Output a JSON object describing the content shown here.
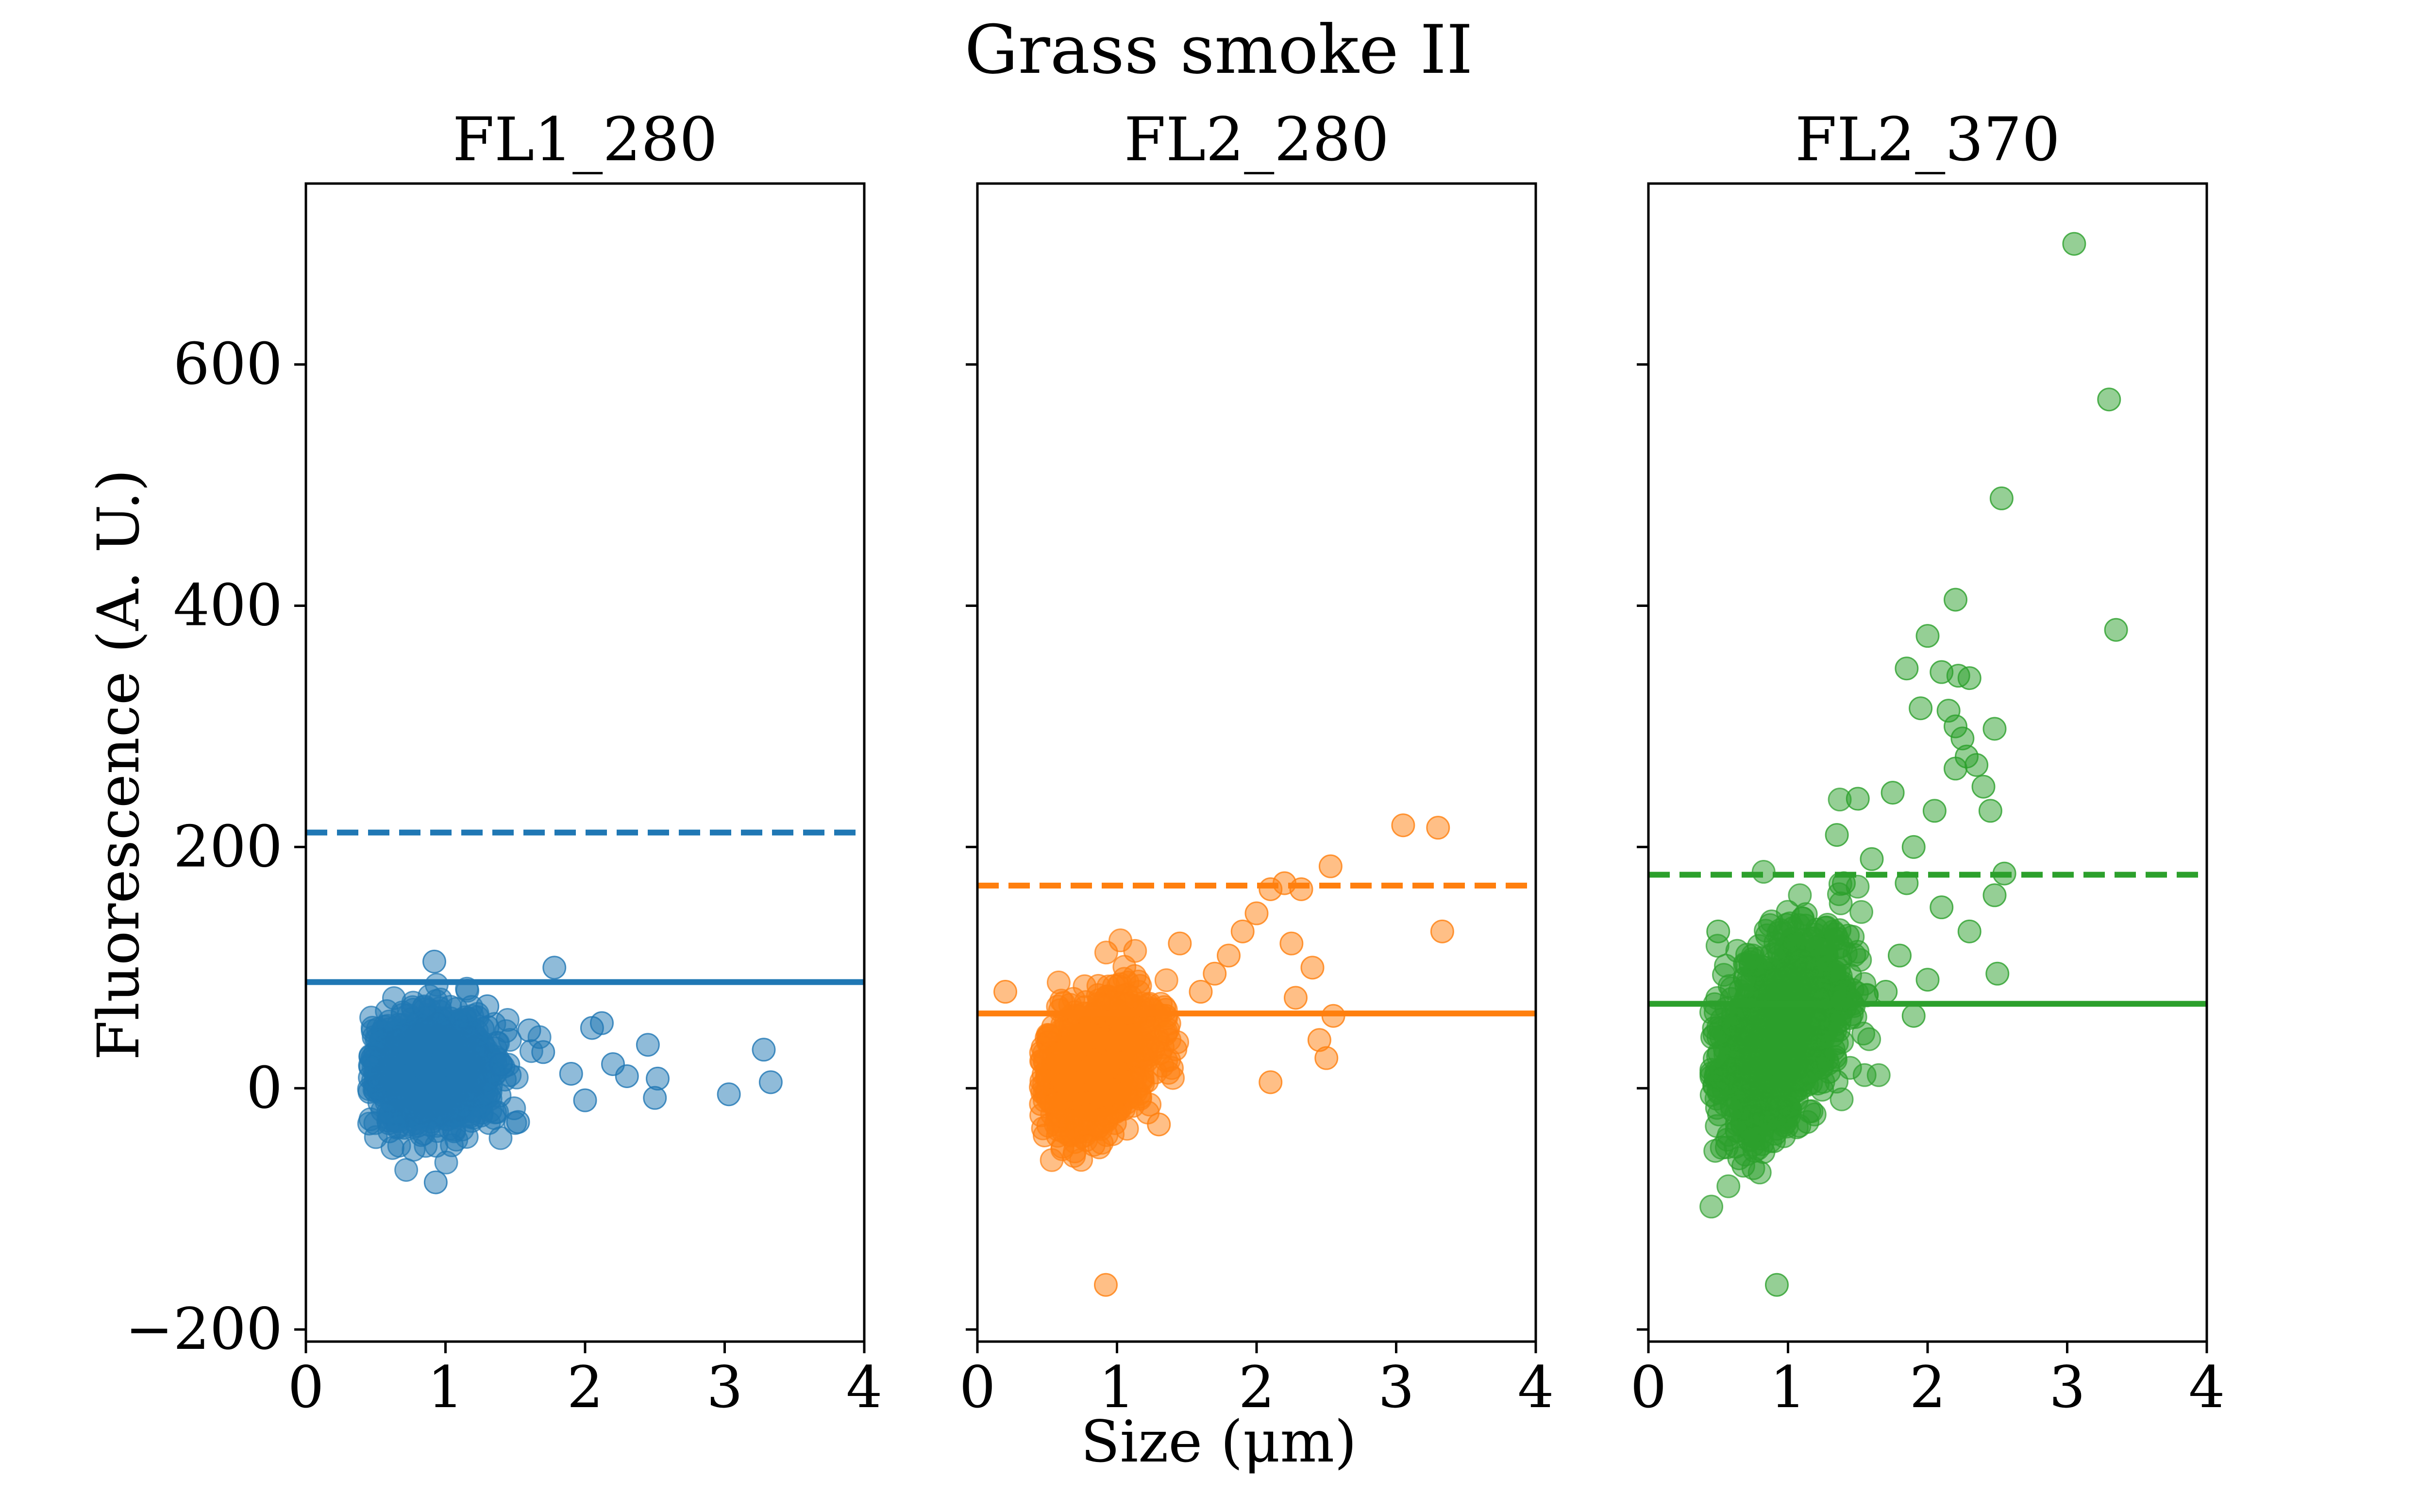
{
  "chart_data": {
    "type": "scatter",
    "title": "Grass smoke II",
    "xlabel": "Size (μm)",
    "ylabel": "Fluorescence (A. U.)",
    "xlim": [
      0,
      4
    ],
    "ylim": [
      -210,
      750
    ],
    "xticks": [
      "0",
      "1",
      "2",
      "3",
      "4"
    ],
    "yticks": [
      "−200",
      "0",
      "200",
      "400",
      "600"
    ],
    "ytick_values": [
      -200,
      0,
      200,
      400,
      600
    ],
    "sharey": true,
    "grid": false,
    "panels": [
      {
        "title": "FL1_280",
        "color": "#1f77b4",
        "threshold_solid": 88,
        "threshold_dashed": 212,
        "cluster": {
          "x_center": 0.9,
          "x_spread": 0.22,
          "y_center": 15,
          "y_spread": 22,
          "count": 1200
        },
        "points": [
          {
            "x": 0.93,
            "y": -78
          },
          {
            "x": 0.92,
            "y": 105
          },
          {
            "x": 1.78,
            "y": 100
          },
          {
            "x": 3.03,
            "y": -5
          },
          {
            "x": 3.28,
            "y": 32
          },
          {
            "x": 3.33,
            "y": 5
          },
          {
            "x": 2.45,
            "y": 36
          },
          {
            "x": 2.05,
            "y": 50
          },
          {
            "x": 2.12,
            "y": 54
          },
          {
            "x": 2.52,
            "y": 8
          },
          {
            "x": 2.5,
            "y": -8
          },
          {
            "x": 1.6,
            "y": 48
          },
          {
            "x": 1.3,
            "y": 68
          },
          {
            "x": 1.52,
            "y": -28
          },
          {
            "x": 2.2,
            "y": 20
          },
          {
            "x": 2.3,
            "y": 10
          },
          {
            "x": 1.9,
            "y": 12
          },
          {
            "x": 2.0,
            "y": -10
          },
          {
            "x": 1.7,
            "y": 30
          },
          {
            "x": 1.4,
            "y": 20
          }
        ]
      },
      {
        "title": "FL2_280",
        "color": "#ff7f0e",
        "threshold_solid": 62,
        "threshold_dashed": 168,
        "cluster": {
          "x_center": 0.85,
          "x_spread": 0.2,
          "y_center": 20,
          "y_spread": 25,
          "count": 1200
        },
        "points": [
          {
            "x": 0.92,
            "y": -163
          },
          {
            "x": 3.05,
            "y": 218
          },
          {
            "x": 3.3,
            "y": 216
          },
          {
            "x": 3.33,
            "y": 130
          },
          {
            "x": 2.53,
            "y": 184
          },
          {
            "x": 2.2,
            "y": 170
          },
          {
            "x": 2.32,
            "y": 165
          },
          {
            "x": 2.1,
            "y": 165
          },
          {
            "x": 2.0,
            "y": 145
          },
          {
            "x": 1.9,
            "y": 130
          },
          {
            "x": 2.4,
            "y": 100
          },
          {
            "x": 2.5,
            "y": 25
          },
          {
            "x": 2.45,
            "y": 40
          },
          {
            "x": 2.55,
            "y": 60
          },
          {
            "x": 2.1,
            "y": 5
          },
          {
            "x": 1.35,
            "y": 60
          },
          {
            "x": 1.6,
            "y": 80
          },
          {
            "x": 1.8,
            "y": 110
          },
          {
            "x": 0.2,
            "y": 80
          },
          {
            "x": 1.3,
            "y": -30
          },
          {
            "x": 1.7,
            "y": 95
          },
          {
            "x": 2.25,
            "y": 120
          },
          {
            "x": 1.45,
            "y": 120
          },
          {
            "x": 2.28,
            "y": 75
          }
        ]
      },
      {
        "title": "FL2_370",
        "color": "#2ca02c",
        "threshold_solid": 70,
        "threshold_dashed": 177,
        "cluster": {
          "x_center": 0.95,
          "x_spread": 0.22,
          "y_center": 45,
          "y_spread": 38,
          "count": 1200
        },
        "points": [
          {
            "x": 3.05,
            "y": 700
          },
          {
            "x": 3.3,
            "y": 571
          },
          {
            "x": 2.53,
            "y": 489
          },
          {
            "x": 3.35,
            "y": 380
          },
          {
            "x": 2.2,
            "y": 405
          },
          {
            "x": 2.0,
            "y": 375
          },
          {
            "x": 1.85,
            "y": 348
          },
          {
            "x": 2.1,
            "y": 345
          },
          {
            "x": 2.22,
            "y": 342
          },
          {
            "x": 2.3,
            "y": 340
          },
          {
            "x": 1.95,
            "y": 315
          },
          {
            "x": 2.15,
            "y": 313
          },
          {
            "x": 2.2,
            "y": 300
          },
          {
            "x": 2.25,
            "y": 290
          },
          {
            "x": 2.48,
            "y": 298
          },
          {
            "x": 2.35,
            "y": 268
          },
          {
            "x": 2.28,
            "y": 275
          },
          {
            "x": 2.2,
            "y": 265
          },
          {
            "x": 2.4,
            "y": 250
          },
          {
            "x": 2.45,
            "y": 230
          },
          {
            "x": 1.75,
            "y": 245
          },
          {
            "x": 2.05,
            "y": 230
          },
          {
            "x": 1.5,
            "y": 240
          },
          {
            "x": 1.9,
            "y": 200
          },
          {
            "x": 2.55,
            "y": 178
          },
          {
            "x": 2.48,
            "y": 160
          },
          {
            "x": 2.5,
            "y": 95
          },
          {
            "x": 1.6,
            "y": 190
          },
          {
            "x": 2.1,
            "y": 150
          },
          {
            "x": 2.3,
            "y": 130
          },
          {
            "x": 1.8,
            "y": 110
          },
          {
            "x": 2.0,
            "y": 90
          },
          {
            "x": 1.7,
            "y": 80
          },
          {
            "x": 0.92,
            "y": -163
          },
          {
            "x": 0.5,
            "y": 130
          },
          {
            "x": 1.4,
            "y": 170
          },
          {
            "x": 1.35,
            "y": 210
          },
          {
            "x": 1.85,
            "y": 170
          },
          {
            "x": 1.9,
            "y": 60
          }
        ]
      }
    ]
  }
}
